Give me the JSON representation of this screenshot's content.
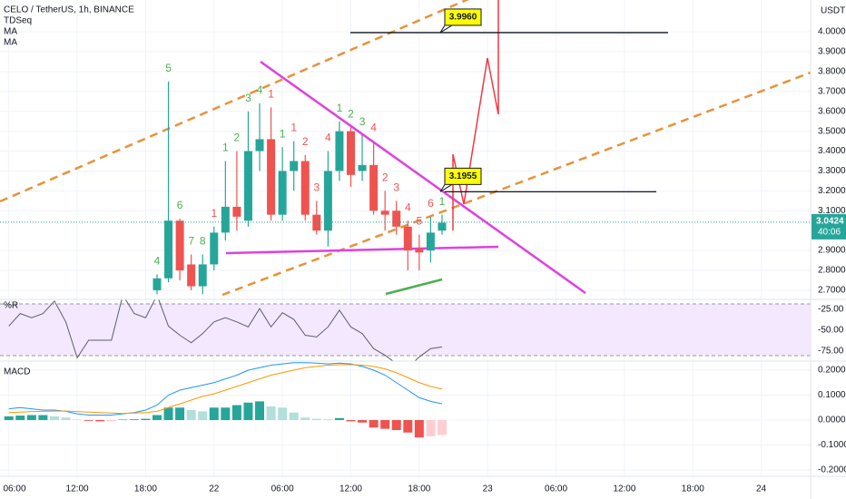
{
  "chart_data": [
    {
      "type": "candlestick",
      "title": "CELO / TetherUS, 1h, BINANCE",
      "indicators": [
        "TDSeq",
        "MA",
        "MA"
      ],
      "axis_unit": "USDT",
      "x": [
        19,
        20,
        21,
        22,
        23,
        24,
        25,
        26,
        27,
        28,
        29,
        30,
        31,
        32,
        33,
        34,
        35,
        36,
        37,
        38,
        39,
        40,
        41,
        42,
        43,
        44
      ],
      "open": [
        2.7,
        2.76,
        3.05,
        2.83,
        2.72,
        2.83,
        2.99,
        3.12,
        3.05,
        3.4,
        3.46,
        3.08,
        3.3,
        3.35,
        3.08,
        3.0,
        3.3,
        3.5,
        3.3,
        3.33,
        3.1,
        3.1,
        3.02,
        2.91,
        2.9,
        3.0
      ],
      "high": [
        2.78,
        3.75,
        3.06,
        2.88,
        2.88,
        3.02,
        3.35,
        3.4,
        3.6,
        3.64,
        3.62,
        3.42,
        3.45,
        3.38,
        3.15,
        3.4,
        3.55,
        3.52,
        3.48,
        3.45,
        3.2,
        3.15,
        3.05,
        2.98,
        3.07,
        3.08
      ],
      "low": [
        2.68,
        2.74,
        2.75,
        2.7,
        2.68,
        2.8,
        2.95,
        3.0,
        3.02,
        3.3,
        3.05,
        3.05,
        3.2,
        3.05,
        2.98,
        2.92,
        3.25,
        3.22,
        3.25,
        3.08,
        3.0,
        2.98,
        2.8,
        2.8,
        2.84,
        2.98
      ],
      "close": [
        2.76,
        3.05,
        2.8,
        2.72,
        2.83,
        2.99,
        3.12,
        3.07,
        3.4,
        3.46,
        3.08,
        3.3,
        3.35,
        3.08,
        3.0,
        3.3,
        3.5,
        3.28,
        3.33,
        3.1,
        3.08,
        3.02,
        2.9,
        2.89,
        2.99,
        3.04
      ],
      "td_labels": [
        4,
        5,
        6,
        7,
        8,
        1,
        1,
        2,
        3,
        4,
        1,
        1,
        1,
        2,
        3,
        4,
        1,
        2,
        3,
        4,
        2,
        3,
        4,
        5,
        6,
        1
      ],
      "td_colors": [
        "#4caf50",
        "#4caf50",
        "#4caf50",
        "#4caf50",
        "#4caf50",
        "#f05350",
        "#4caf50",
        "#4caf50",
        "#4caf50",
        "#4caf50",
        "#f05350",
        "#4caf50",
        "#f05350",
        "#f05350",
        "#f05350",
        "#f05350",
        "#4caf50",
        "#4caf50",
        "#4caf50",
        "#f05350",
        "#f05350",
        "#f05350",
        "#f05350",
        "#f05350",
        "#f05350",
        "#4caf50"
      ],
      "up_color": "#26a69a",
      "down_color": "#ef5350",
      "xlim": [
        5.226,
        76.33
      ],
      "xticks": [
        {
          "value": 6,
          "label": "06:00"
        },
        {
          "value": 12,
          "label": "12:00"
        },
        {
          "value": 18,
          "label": "18:00"
        },
        {
          "value": 24,
          "label": "22"
        },
        {
          "value": 30,
          "label": "06:00"
        },
        {
          "value": 36,
          "label": "12:00"
        },
        {
          "value": 42,
          "label": "18:00"
        },
        {
          "value": 48,
          "label": "23"
        },
        {
          "value": 54,
          "label": "06:00"
        },
        {
          "value": 60,
          "label": "12:00"
        },
        {
          "value": 66,
          "label": "18:00"
        },
        {
          "value": 72,
          "label": "24"
        }
      ],
      "ylim": [
        2.654,
        4.16
      ],
      "yticks": [
        {
          "value": 2.7,
          "label": "2.7000"
        },
        {
          "value": 2.8,
          "label": "2.8000"
        },
        {
          "value": 2.9,
          "label": "2.9000"
        },
        {
          "value": 3.1,
          "label": "3.1000"
        },
        {
          "value": 3.2,
          "label": "3.2000"
        },
        {
          "value": 3.3,
          "label": "3.3000"
        },
        {
          "value": 3.4,
          "label": "3.4000"
        },
        {
          "value": 3.5,
          "label": "3.5000"
        },
        {
          "value": 3.6,
          "label": "3.6000"
        },
        {
          "value": 3.7,
          "label": "3.7000"
        },
        {
          "value": 3.8,
          "label": "3.8000"
        },
        {
          "value": 3.9,
          "label": "3.9000"
        },
        {
          "value": 4.0,
          "label": "4.0000"
        }
      ],
      "grid": true,
      "last_price": {
        "value": 3.0424,
        "label": "3.0424"
      },
      "countdown": "40:06",
      "annotations": [
        {
          "value": 3.996,
          "label": "3.9960"
        },
        {
          "value": 3.1955,
          "label": "3.1955"
        }
      ]
    },
    {
      "type": "line",
      "title": "%R",
      "x": [
        6,
        7,
        8,
        9,
        10,
        11,
        12,
        13,
        14,
        15,
        16,
        17,
        18,
        19,
        20,
        21,
        22,
        23,
        24,
        25,
        26,
        27,
        28,
        29,
        30,
        31,
        32,
        33,
        34,
        35,
        36,
        37,
        38,
        39,
        40,
        41,
        42,
        43,
        44
      ],
      "values": [
        -45,
        -30,
        -35,
        -30,
        -15,
        -40,
        -83,
        -62,
        -62,
        -62,
        -8,
        -30,
        -35,
        -8,
        -45,
        -56,
        -65,
        -54,
        -40,
        -35,
        -40,
        -46,
        -24,
        -46,
        -29,
        -37,
        -56,
        -58,
        -46,
        -26,
        -46,
        -54,
        -72,
        -80,
        -90,
        -95,
        -82,
        -72,
        -70
      ],
      "color": "#5d606b",
      "ylim": [
        -86.96,
        -13.04
      ],
      "yticks": [
        {
          "value": -25,
          "label": "-25.00"
        },
        {
          "value": -50,
          "label": "-50.00"
        },
        {
          "value": -75,
          "label": "-75.00"
        }
      ]
    },
    {
      "type": "macd",
      "title": "MACD",
      "x": [
        6,
        7,
        8,
        9,
        10,
        11,
        12,
        13,
        14,
        15,
        16,
        17,
        18,
        19,
        20,
        21,
        22,
        23,
        24,
        25,
        26,
        27,
        28,
        29,
        30,
        31,
        32,
        33,
        34,
        35,
        36,
        37,
        38,
        39,
        40,
        41,
        42,
        43,
        44
      ],
      "series": [
        {
          "color": "#2196f3",
          "values": [
            0.045,
            0.05,
            0.045,
            0.04,
            0.04,
            0.035,
            0.025,
            0.02,
            0.02,
            0.02,
            0.025,
            0.03,
            0.04,
            0.06,
            0.1,
            0.12,
            0.13,
            0.14,
            0.15,
            0.165,
            0.18,
            0.2,
            0.21,
            0.22,
            0.225,
            0.23,
            0.23,
            0.228,
            0.225,
            0.228,
            0.225,
            0.215,
            0.2,
            0.18,
            0.15,
            0.12,
            0.09,
            0.075,
            0.065
          ]
        },
        {
          "color": "#ff9800",
          "values": [
            0.03,
            0.032,
            0.034,
            0.035,
            0.036,
            0.036,
            0.034,
            0.032,
            0.03,
            0.028,
            0.027,
            0.028,
            0.03,
            0.035,
            0.05,
            0.065,
            0.08,
            0.095,
            0.105,
            0.12,
            0.135,
            0.15,
            0.165,
            0.18,
            0.19,
            0.2,
            0.21,
            0.215,
            0.22,
            0.222,
            0.222,
            0.22,
            0.215,
            0.205,
            0.19,
            0.17,
            0.15,
            0.135,
            0.124
          ]
        }
      ],
      "histogram": {
        "values": [
          0.015,
          0.018,
          0.02,
          0.02,
          0.015,
          0.01,
          0.002,
          -0.003,
          -0.005,
          -0.005,
          0.002,
          0.003,
          0.005,
          0.02,
          0.05,
          0.05,
          0.04,
          0.035,
          0.05,
          0.05,
          0.06,
          0.07,
          0.075,
          0.055,
          0.05,
          0.03,
          0.01,
          0.005,
          0.003,
          0.008,
          -0.005,
          -0.01,
          -0.03,
          -0.035,
          -0.04,
          -0.05,
          -0.07,
          -0.065,
          -0.06
        ],
        "colors": [
          "#26a69a",
          "#26a69a",
          "#26a69a",
          "#26a69a",
          "#b2dfdb",
          "#b2dfdb",
          "#b2dfdb",
          "#ef5350",
          "#ef5350",
          "#ffcdd2",
          "#26a69a",
          "#26a69a",
          "#26a69a",
          "#26a69a",
          "#26a69a",
          "#26a69a",
          "#b2dfdb",
          "#b2dfdb",
          "#26a69a",
          "#26a69a",
          "#26a69a",
          "#26a69a",
          "#26a69a",
          "#b2dfdb",
          "#b2dfdb",
          "#b2dfdb",
          "#b2dfdb",
          "#b2dfdb",
          "#b2dfdb",
          "#26a69a",
          "#ef5350",
          "#ef5350",
          "#ef5350",
          "#ef5350",
          "#ef5350",
          "#ef5350",
          "#ef5350",
          "#ffcdd2",
          "#ffcdd2"
        ]
      },
      "ylim": [
        -0.2255,
        0.2364
      ],
      "yticks": [
        {
          "value": 0.2,
          "label": "0.2000"
        },
        {
          "value": 0.1,
          "label": "0.1000"
        },
        {
          "value": 0,
          "label": "0.0000"
        },
        {
          "value": -0.1,
          "label": "-0.1000"
        },
        {
          "value": -0.2,
          "label": "-0.2000"
        }
      ]
    }
  ]
}
